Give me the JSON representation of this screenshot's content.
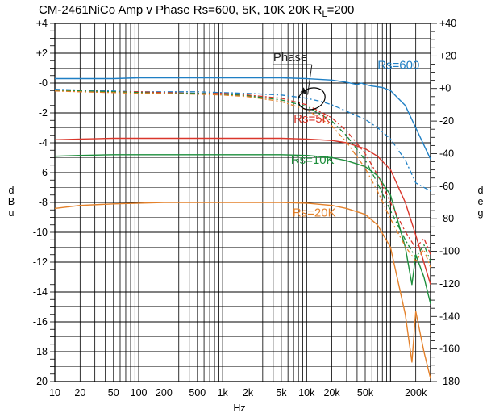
{
  "chart_data": {
    "type": "line",
    "title": "CM-2461NiCo  Amp v Phase  Rs=600, 5K, 10K 20K  R",
    "title_subscript": "L",
    "title_suffix": "=200",
    "xlabel": "Hz",
    "ylabel_left": "dBu",
    "ylabel_right": "deg",
    "x_scale": "log",
    "xlim": [
      10,
      300000
    ],
    "ylim_left": [
      -20,
      4
    ],
    "ylim_right": [
      -180,
      40
    ],
    "grid": true,
    "x_ticks": [
      {
        "v": 10,
        "t": "10"
      },
      {
        "v": 20,
        "t": "20"
      },
      {
        "v": 50,
        "t": "50"
      },
      {
        "v": 100,
        "t": "100"
      },
      {
        "v": 200,
        "t": "200"
      },
      {
        "v": 500,
        "t": "500"
      },
      {
        "v": 1000,
        "t": "1k"
      },
      {
        "v": 2000,
        "t": "2k"
      },
      {
        "v": 5000,
        "t": "5k"
      },
      {
        "v": 10000,
        "t": "10k"
      },
      {
        "v": 20000,
        "t": "20k"
      },
      {
        "v": 50000,
        "t": "50k"
      },
      {
        "v": 200000,
        "t": "200k"
      }
    ],
    "y_ticks_left": [
      {
        "v": 4,
        "t": "+4"
      },
      {
        "v": 2,
        "t": "+2"
      },
      {
        "v": 0,
        "t": "-0"
      },
      {
        "v": -2,
        "t": "-2"
      },
      {
        "v": -4,
        "t": "-4"
      },
      {
        "v": -6,
        "t": "-6"
      },
      {
        "v": -8,
        "t": "-8"
      },
      {
        "v": -10,
        "t": "-10"
      },
      {
        "v": -12,
        "t": "-12"
      },
      {
        "v": -14,
        "t": "-14"
      },
      {
        "v": -16,
        "t": "-16"
      },
      {
        "v": -18,
        "t": "-18"
      },
      {
        "v": -20,
        "t": "-20"
      }
    ],
    "y_ticks_right": [
      {
        "v": 40,
        "t": "+40"
      },
      {
        "v": 20,
        "t": "+20"
      },
      {
        "v": 0,
        "t": "+0"
      },
      {
        "v": -20,
        "t": "-20"
      },
      {
        "v": -40,
        "t": "-40"
      },
      {
        "v": -60,
        "t": "-60"
      },
      {
        "v": -80,
        "t": "-80"
      },
      {
        "v": -100,
        "t": "-100"
      },
      {
        "v": -120,
        "t": "-120"
      },
      {
        "v": -140,
        "t": "-140"
      },
      {
        "v": -160,
        "t": "-160"
      },
      {
        "v": -180,
        "t": "-180"
      }
    ],
    "series": [
      {
        "name": "Rs=600",
        "kind": "amplitude",
        "axis": "left",
        "color": "#1f7fc4",
        "x": [
          10,
          20,
          50,
          100,
          200,
          500,
          1000,
          2000,
          5000,
          10000,
          20000,
          30000,
          40000,
          45000,
          50000,
          60000,
          80000,
          100000,
          150000,
          200000,
          300000
        ],
        "y": [
          0.3,
          0.3,
          0.3,
          0.35,
          0.35,
          0.35,
          0.35,
          0.35,
          0.35,
          0.3,
          0.2,
          0.05,
          -0.1,
          0.0,
          -0.1,
          -0.2,
          -0.3,
          -0.5,
          -1.5,
          -3.0,
          -5.1
        ]
      },
      {
        "name": "Rs=5K",
        "kind": "amplitude",
        "axis": "left",
        "color": "#d9362b",
        "x": [
          10,
          20,
          50,
          100,
          200,
          500,
          1000,
          2000,
          5000,
          10000,
          20000,
          30000,
          50000,
          70000,
          100000,
          150000,
          200000,
          300000
        ],
        "y": [
          -3.8,
          -3.75,
          -3.7,
          -3.7,
          -3.7,
          -3.7,
          -3.7,
          -3.7,
          -3.7,
          -3.75,
          -3.85,
          -4.0,
          -4.4,
          -4.9,
          -5.8,
          -8.0,
          -10.2,
          -13.5
        ]
      },
      {
        "name": "Rs=10K",
        "kind": "amplitude",
        "axis": "left",
        "color": "#1d8f3c",
        "x": [
          10,
          20,
          50,
          100,
          200,
          500,
          1000,
          2000,
          5000,
          10000,
          20000,
          30000,
          50000,
          70000,
          100000,
          150000,
          180000,
          200000,
          250000,
          300000
        ],
        "y": [
          -4.9,
          -4.85,
          -4.8,
          -4.8,
          -4.8,
          -4.8,
          -4.8,
          -4.8,
          -4.8,
          -4.85,
          -5.0,
          -5.2,
          -5.6,
          -6.2,
          -7.5,
          -11.0,
          -13.5,
          -11.5,
          -13.0,
          -14.8
        ]
      },
      {
        "name": "Rs=20K",
        "kind": "amplitude",
        "axis": "left",
        "color": "#e4812a",
        "x": [
          10,
          20,
          50,
          100,
          200,
          500,
          1000,
          2000,
          5000,
          10000,
          20000,
          30000,
          50000,
          70000,
          100000,
          150000,
          180000,
          200000,
          250000,
          300000
        ],
        "y": [
          -8.4,
          -8.2,
          -8.1,
          -8.05,
          -8.0,
          -8.0,
          -8.0,
          -8.0,
          -8.0,
          -8.05,
          -8.2,
          -8.4,
          -8.8,
          -9.5,
          -11.0,
          -15.5,
          -18.7,
          -15.3,
          -18.0,
          -19.8
        ]
      },
      {
        "kind": "phase",
        "axis": "right",
        "color": "#1f7fc4",
        "x": [
          10,
          20,
          50,
          100,
          200,
          500,
          1000,
          2000,
          5000,
          10000,
          15000,
          20000,
          30000,
          50000,
          70000,
          100000,
          150000,
          200000,
          300000
        ],
        "y": [
          -0.5,
          -1,
          -1.5,
          -2,
          -2,
          -2,
          -2.5,
          -3,
          -4,
          -6,
          -8,
          -10,
          -14,
          -19,
          -24,
          -31,
          -44,
          -58,
          -63
        ]
      },
      {
        "kind": "phase",
        "axis": "right",
        "color": "#d9362b",
        "x": [
          10,
          20,
          50,
          100,
          200,
          500,
          1000,
          2000,
          5000,
          10000,
          20000,
          30000,
          50000,
          70000,
          100000,
          150000,
          200000,
          250000,
          300000
        ],
        "y": [
          -1,
          -1.5,
          -2,
          -2,
          -2.5,
          -3,
          -3,
          -4,
          -6,
          -10,
          -18,
          -26,
          -40,
          -53,
          -70,
          -88,
          -98,
          -92,
          -102
        ]
      },
      {
        "kind": "phase",
        "axis": "right",
        "color": "#1d8f3c",
        "x": [
          10,
          20,
          50,
          100,
          200,
          500,
          1000,
          2000,
          5000,
          10000,
          20000,
          30000,
          50000,
          70000,
          100000,
          150000,
          200000,
          250000,
          300000
        ],
        "y": [
          -1,
          -1.5,
          -2,
          -2.5,
          -3,
          -3,
          -3.5,
          -4.5,
          -7,
          -11,
          -20,
          -29,
          -44,
          -58,
          -75,
          -93,
          -104,
          -96,
          -106
        ]
      },
      {
        "kind": "phase",
        "axis": "right",
        "color": "#e4812a",
        "x": [
          10,
          20,
          50,
          100,
          200,
          500,
          1000,
          2000,
          5000,
          10000,
          20000,
          30000,
          50000,
          70000,
          100000,
          150000,
          200000,
          250000,
          300000
        ],
        "y": [
          -1.5,
          -2,
          -2.5,
          -3,
          -3,
          -3.5,
          -4,
          -5,
          -8,
          -13,
          -23,
          -33,
          -49,
          -63,
          -80,
          -97,
          -106,
          -99,
          -110
        ]
      }
    ],
    "annotations": [
      {
        "text": "Rs=600",
        "color": "#1f7fc4",
        "x": 70000,
        "y": 0.95
      },
      {
        "text": "Rs=5K",
        "color": "#d9362b",
        "x": 7000,
        "y": -2.65
      },
      {
        "text": "Rs=10K",
        "color": "#1d8f3c",
        "x": 6500,
        "y": -5.4
      },
      {
        "text": "Rs=20K",
        "color": "#e4812a",
        "x": 6800,
        "y": -8.95
      },
      {
        "text": "Phase",
        "color": "#222222",
        "x": 4000,
        "y": 1.45
      }
    ]
  }
}
